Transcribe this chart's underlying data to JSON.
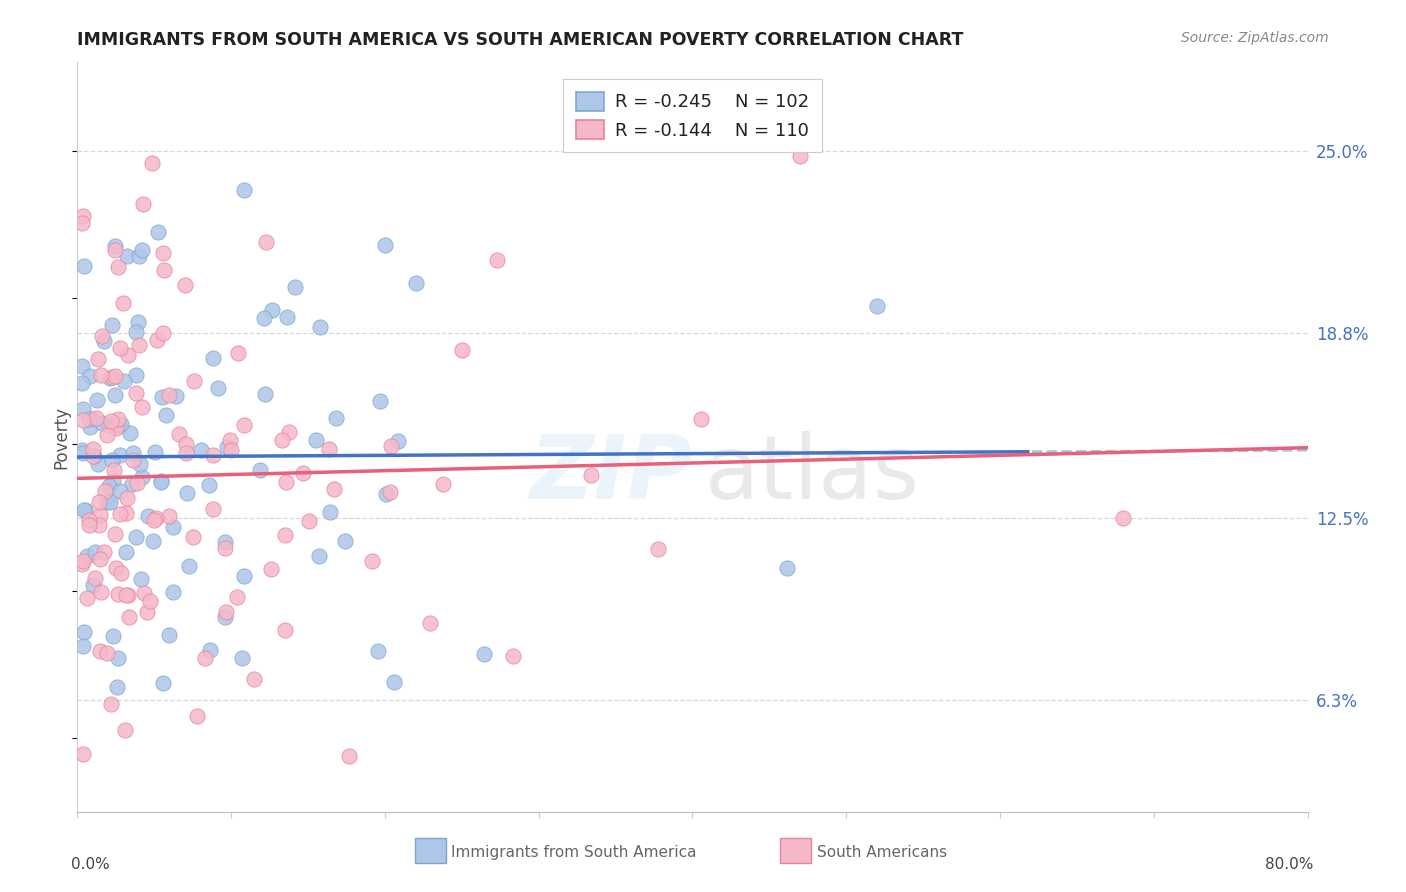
{
  "title": "IMMIGRANTS FROM SOUTH AMERICA VS SOUTH AMERICAN POVERTY CORRELATION CHART",
  "source": "Source: ZipAtlas.com",
  "ylabel": "Poverty",
  "ytick_labels": [
    "25.0%",
    "18.8%",
    "12.5%",
    "6.3%"
  ],
  "ytick_values": [
    0.25,
    0.188,
    0.125,
    0.063
  ],
  "xlim": [
    0.0,
    0.8
  ],
  "ylim": [
    0.025,
    0.28
  ],
  "legend": {
    "blue_R": "-0.245",
    "blue_N": "102",
    "pink_R": "-0.144",
    "pink_N": "110"
  },
  "blue_fill_color": "#aec6e8",
  "pink_fill_color": "#f5b8c8",
  "blue_edge_color": "#7ba7d4",
  "pink_edge_color": "#e8829a",
  "blue_line_color": "#4472c4",
  "pink_line_color": "#e8607a",
  "dashed_line_color": "#9ec8dc",
  "ytick_color": "#4472c4",
  "grid_color": "#d8d8d8",
  "title_color": "#222222",
  "source_color": "#888888",
  "bottom_label_color": "#666666"
}
